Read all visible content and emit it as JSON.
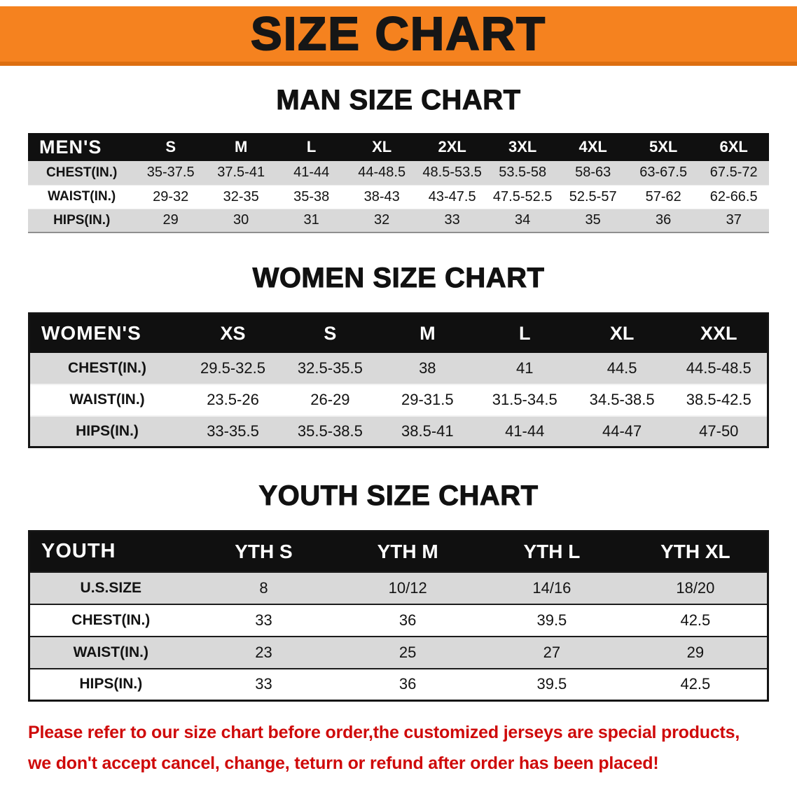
{
  "banner": {
    "title": "SIZE CHART"
  },
  "colors": {
    "banner_orange": "#f5821f",
    "banner_orange_dark": "#dd6f10",
    "header_black": "#101010",
    "row_gray": "#d9d9d9",
    "disclaimer_red": "#cf0a0a"
  },
  "chart_data": [
    {
      "type": "table",
      "title": "MAN SIZE CHART",
      "columns": [
        "MEN'S",
        "S",
        "M",
        "L",
        "XL",
        "2XL",
        "3XL",
        "4XL",
        "5XL",
        "6XL"
      ],
      "rows": [
        [
          "CHEST(IN.)",
          "35-37.5",
          "37.5-41",
          "41-44",
          "44-48.5",
          "48.5-53.5",
          "53.5-58",
          "58-63",
          "63-67.5",
          "67.5-72"
        ],
        [
          "WAIST(IN.)",
          "29-32",
          "32-35",
          "35-38",
          "38-43",
          "43-47.5",
          "47.5-52.5",
          "52.5-57",
          "57-62",
          "62-66.5"
        ],
        [
          "HIPS(IN.)",
          "29",
          "30",
          "31",
          "32",
          "33",
          "34",
          "35",
          "36",
          "37"
        ]
      ]
    },
    {
      "type": "table",
      "title": "WOMEN SIZE CHART",
      "columns": [
        "WOMEN'S",
        "XS",
        "S",
        "M",
        "L",
        "XL",
        "XXL"
      ],
      "rows": [
        [
          "CHEST(IN.)",
          "29.5-32.5",
          "32.5-35.5",
          "38",
          "41",
          "44.5",
          "44.5-48.5"
        ],
        [
          "WAIST(IN.)",
          "23.5-26",
          "26-29",
          "29-31.5",
          "31.5-34.5",
          "34.5-38.5",
          "38.5-42.5"
        ],
        [
          "HIPS(IN.)",
          "33-35.5",
          "35.5-38.5",
          "38.5-41",
          "41-44",
          "44-47",
          "47-50"
        ]
      ]
    },
    {
      "type": "table",
      "title": "YOUTH SIZE CHART",
      "columns": [
        "YOUTH",
        "YTH S",
        "YTH M",
        "YTH L",
        "YTH XL"
      ],
      "rows": [
        [
          "U.S.SIZE",
          "8",
          "10/12",
          "14/16",
          "18/20"
        ],
        [
          "CHEST(IN.)",
          "33",
          "36",
          "39.5",
          "42.5"
        ],
        [
          "WAIST(IN.)",
          "23",
          "25",
          "27",
          "29"
        ],
        [
          "HIPS(IN.)",
          "33",
          "36",
          "39.5",
          "42.5"
        ]
      ]
    }
  ],
  "disclaimer": {
    "line1": "Please refer to our size chart before order,the customized jerseys are special products,",
    "line2": "we don't accept cancel, change, teturn or refund after order has been placed!"
  }
}
